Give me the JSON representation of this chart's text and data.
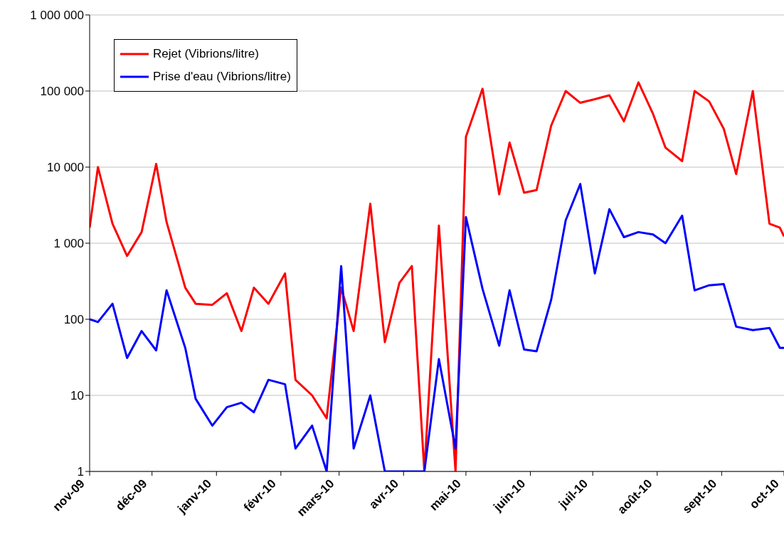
{
  "chart_data": {
    "type": "line",
    "log": "y",
    "grid": "y",
    "legend": "top left",
    "line_style": "solid",
    "marker": "none",
    "x": [
      "2009-11-01",
      "2009-11-05",
      "2009-11-12",
      "2009-11-19",
      "2009-11-26",
      "2009-12-03",
      "2009-12-08",
      "2009-12-17",
      "2009-12-22",
      "2009-12-30",
      "2010-01-06",
      "2010-01-13",
      "2010-01-19",
      "2010-01-26",
      "2010-02-03",
      "2010-02-08",
      "2010-02-16",
      "2010-02-23",
      "2010-03-02",
      "2010-03-08",
      "2010-03-16",
      "2010-03-23",
      "2010-03-30",
      "2010-04-05",
      "2010-04-11",
      "2010-04-18",
      "2010-04-26",
      "2010-05-01",
      "2010-05-09",
      "2010-05-17",
      "2010-05-22",
      "2010-05-29",
      "2010-06-04",
      "2010-06-11",
      "2010-06-18",
      "2010-06-25",
      "2010-07-02",
      "2010-07-09",
      "2010-07-16",
      "2010-07-23",
      "2010-07-30",
      "2010-08-05",
      "2010-08-13",
      "2010-08-19",
      "2010-08-26",
      "2010-09-02",
      "2010-09-08",
      "2010-09-16",
      "2010-09-24",
      "2010-09-29",
      "2010-10-01"
    ],
    "series": [
      {
        "name": "Rejet (Vibrions/litre)",
        "color": "#ff0000",
        "values": [
          1600,
          10000,
          1800,
          680,
          1400,
          11000,
          1900,
          260,
          160,
          155,
          220,
          70,
          260,
          160,
          400,
          16,
          10,
          5,
          260,
          70,
          3300,
          50,
          300,
          500,
          1,
          1700,
          1,
          25000,
          107000,
          4400,
          21000,
          4600,
          5000,
          35000,
          100000,
          70000,
          78000,
          88000,
          40000,
          130000,
          50000,
          18000,
          12000,
          100000,
          73000,
          32000,
          8100,
          100000,
          1800,
          1600,
          1230
        ]
      },
      {
        "name": "Prise d'eau (Vibrions/litre)",
        "color": "#0000ff",
        "values": [
          100,
          92,
          160,
          31,
          70,
          39,
          240,
          42,
          9,
          4,
          7,
          8,
          6,
          16,
          14,
          2,
          4,
          1,
          500,
          2,
          10,
          1,
          1,
          1,
          1,
          30,
          2,
          2200,
          250,
          45,
          240,
          40,
          38,
          180,
          2000,
          6000,
          400,
          2800,
          1200,
          1400,
          1300,
          1000,
          2300,
          240,
          280,
          290,
          80,
          72,
          77,
          42,
          42
        ]
      }
    ],
    "xlim": [
      "2009-11-01",
      "2010-10-01"
    ],
    "xticks": [
      {
        "value": "2009-11-01",
        "label": "nov-09"
      },
      {
        "value": "2009-12-01",
        "label": "déc-09"
      },
      {
        "value": "2010-01-01",
        "label": "janv-10"
      },
      {
        "value": "2010-02-01",
        "label": "févr-10"
      },
      {
        "value": "2010-03-01",
        "label": "mars-10"
      },
      {
        "value": "2010-04-01",
        "label": "avr-10"
      },
      {
        "value": "2010-05-01",
        "label": "mai-10"
      },
      {
        "value": "2010-06-01",
        "label": "juin-10"
      },
      {
        "value": "2010-07-01",
        "label": "juil-10"
      },
      {
        "value": "2010-08-01",
        "label": "août-10"
      },
      {
        "value": "2010-09-01",
        "label": "sept-10"
      },
      {
        "value": "2010-10-01",
        "label": "oct-10"
      }
    ],
    "ylim": [
      1,
      1000000
    ],
    "yticks": [
      1,
      10,
      100,
      {
        "value": 1000,
        "label": "1 000"
      },
      {
        "value": 10000,
        "label": "10 000"
      },
      {
        "value": 100000,
        "label": "100 000"
      },
      {
        "value": 1000000,
        "label": "1 000 000"
      }
    ]
  }
}
